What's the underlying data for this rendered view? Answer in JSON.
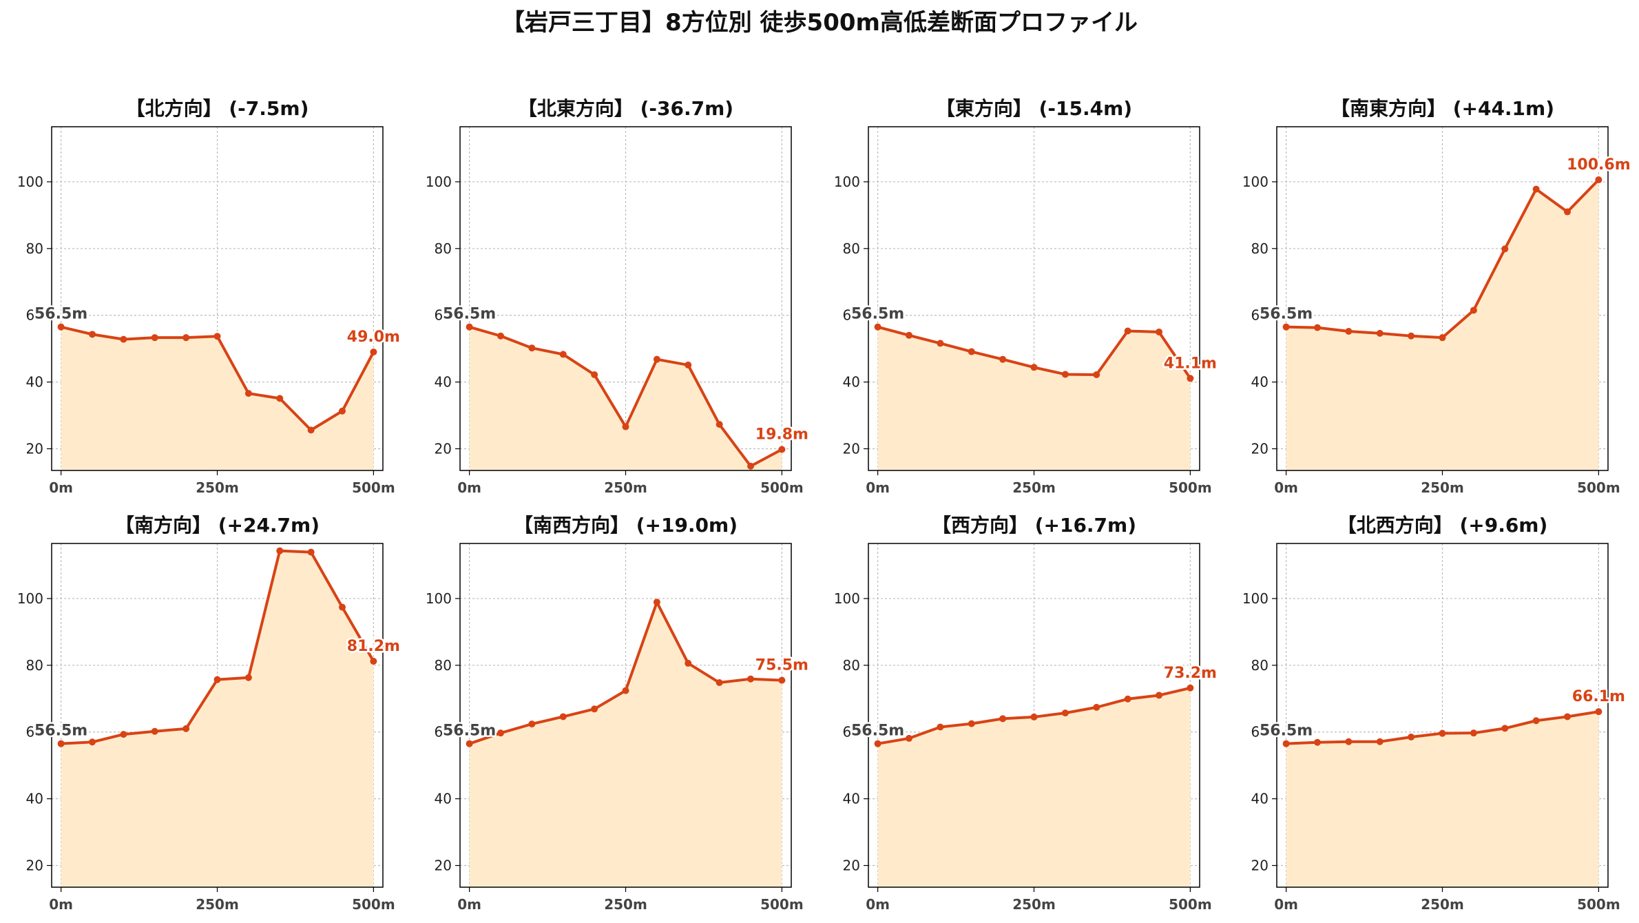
{
  "chart_data": {
    "type": "line",
    "title": "【岩戸三丁目】8方位別 徒歩500m高低差断面プロファイル",
    "x_unit": "m",
    "x": [
      0,
      50,
      100,
      150,
      200,
      250,
      300,
      350,
      400,
      450,
      500
    ],
    "xticks": [
      0,
      250,
      500
    ],
    "xtick_labels": [
      "0m",
      "250m",
      "500m"
    ],
    "xlim": [
      -15,
      515
    ],
    "ylim": [
      13.5,
      116.5
    ],
    "yticks": [
      20,
      40,
      60,
      80,
      100
    ],
    "ytick_labels": [
      "20",
      "40",
      "60",
      "80",
      "100"
    ],
    "grid": true,
    "line_color": "#d84315",
    "fill_color": "#ffebcc",
    "start_label_color": "#444444",
    "end_label_color": "#d84315",
    "panels": [
      {
        "title": "【北方向】 (-7.5m)",
        "start_label": "56.5m",
        "end_label": "49.0m",
        "values": [
          56.5,
          54.3,
          52.8,
          53.3,
          53.3,
          53.7,
          36.6,
          35.1,
          25.6,
          31.3,
          49.0
        ]
      },
      {
        "title": "【北東方向】 (-36.7m)",
        "start_label": "56.5m",
        "end_label": "19.8m",
        "values": [
          56.5,
          53.8,
          50.2,
          48.3,
          42.2,
          26.6,
          46.8,
          45.1,
          27.3,
          14.8,
          19.8
        ]
      },
      {
        "title": "【東方向】 (-15.4m)",
        "start_label": "56.5m",
        "end_label": "41.1m",
        "values": [
          56.5,
          54.0,
          51.6,
          49.1,
          46.8,
          44.4,
          42.3,
          42.2,
          55.3,
          55.0,
          41.1
        ]
      },
      {
        "title": "【南東方向】 (+44.1m)",
        "start_label": "56.5m",
        "end_label": "100.6m",
        "values": [
          56.5,
          56.3,
          55.2,
          54.6,
          53.8,
          53.3,
          61.5,
          79.9,
          97.8,
          91.0,
          100.6
        ]
      },
      {
        "title": "【南方向】 (+24.7m)",
        "start_label": "56.5m",
        "end_label": "81.2m",
        "values": [
          56.5,
          57.0,
          59.3,
          60.2,
          61.0,
          75.7,
          76.3,
          114.3,
          113.9,
          97.4,
          81.2
        ]
      },
      {
        "title": "【南西方向】 (+19.0m)",
        "start_label": "56.5m",
        "end_label": "75.5m",
        "values": [
          56.5,
          59.7,
          62.4,
          64.6,
          66.9,
          72.4,
          98.9,
          80.6,
          74.8,
          75.9,
          75.5
        ]
      },
      {
        "title": "【西方向】 (+16.7m)",
        "start_label": "56.5m",
        "end_label": "73.2m",
        "values": [
          56.5,
          58.1,
          61.5,
          62.5,
          64.0,
          64.5,
          65.7,
          67.4,
          69.9,
          71.0,
          73.2
        ]
      },
      {
        "title": "【北西方向】 (+9.6m)",
        "start_label": "56.5m",
        "end_label": "66.1m",
        "values": [
          56.5,
          56.9,
          57.1,
          57.1,
          58.5,
          59.6,
          59.7,
          61.1,
          63.4,
          64.6,
          66.1
        ]
      }
    ]
  }
}
